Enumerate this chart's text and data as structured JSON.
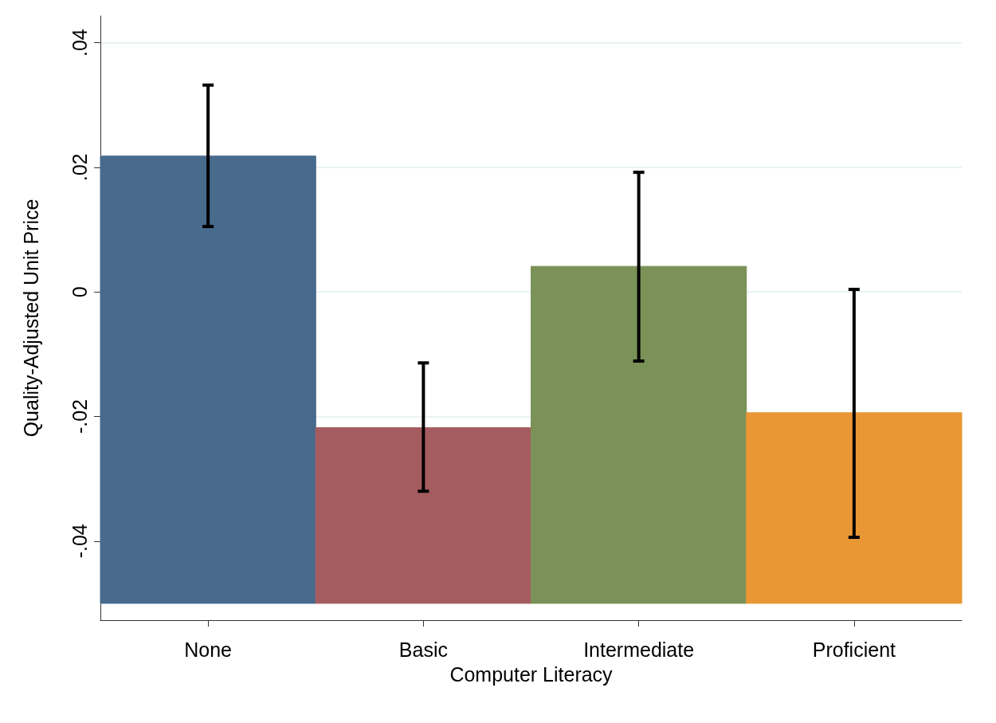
{
  "chart_data": {
    "type": "bar",
    "xlabel": "Computer Literacy",
    "ylabel": "Quality-Adjusted Unit Price",
    "categories": [
      "None",
      "Basic",
      "Intermediate",
      "Proficient"
    ],
    "base": [
      -0.05,
      -0.05,
      -0.05,
      -0.05
    ],
    "values": [
      0.0718,
      0.0282,
      0.0541,
      0.0306
    ],
    "colors": [
      "#486a8c",
      "#a55c60",
      "#7a9157",
      "#e99735"
    ],
    "errors": [
      [
        0.0105,
        0.0332
      ],
      [
        -0.032,
        -0.0114
      ],
      [
        -0.0111,
        0.0192
      ],
      [
        -0.0394,
        0.0004
      ]
    ],
    "ylim": [
      -0.0527,
      0.0443
    ],
    "yticks": [
      {
        "value": -0.04,
        "label": "-.04"
      },
      {
        "value": -0.02,
        "label": "-.02"
      },
      0,
      {
        "value": 0.02,
        "label": ".02"
      },
      {
        "value": 0.04,
        "label": ".04"
      }
    ],
    "grid": "y"
  }
}
